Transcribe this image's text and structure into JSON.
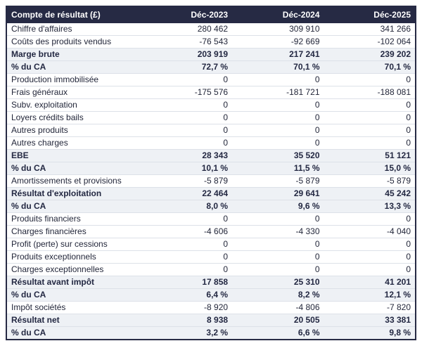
{
  "colors": {
    "header_bg": "#262a44",
    "header_text": "#ffffff",
    "highlight_row_bg": "#eef1f5",
    "text": "#23273a",
    "bold_text": "#232842",
    "row_border": "#dde1e8",
    "outer_border": "#262a44",
    "page_bg": "#ffffff"
  },
  "table": {
    "columns": [
      "Compte de résultat (£)",
      "Déc-2023",
      "Déc-2024",
      "Déc-2025"
    ],
    "rows": [
      {
        "label": "Chiffre d'affaires",
        "values": [
          "280 462",
          "309 910",
          "341 266"
        ],
        "highlight": false
      },
      {
        "label": "Coûts des produits vendus",
        "values": [
          "-76 543",
          "-92 669",
          "-102 064"
        ],
        "highlight": false
      },
      {
        "label": "Marge brute",
        "values": [
          "203 919",
          "217 241",
          "239 202"
        ],
        "highlight": true
      },
      {
        "label": "% du CA",
        "values": [
          "72,7 %",
          "70,1 %",
          "70,1 %"
        ],
        "highlight": true
      },
      {
        "label": "Production immobilisée",
        "values": [
          "0",
          "0",
          "0"
        ],
        "highlight": false
      },
      {
        "label": "Frais généraux",
        "values": [
          "-175 576",
          "-181 721",
          "-188 081"
        ],
        "highlight": false
      },
      {
        "label": "Subv. exploitation",
        "values": [
          "0",
          "0",
          "0"
        ],
        "highlight": false
      },
      {
        "label": "Loyers crédits bails",
        "values": [
          "0",
          "0",
          "0"
        ],
        "highlight": false
      },
      {
        "label": "Autres produits",
        "values": [
          "0",
          "0",
          "0"
        ],
        "highlight": false
      },
      {
        "label": "Autres charges",
        "values": [
          "0",
          "0",
          "0"
        ],
        "highlight": false
      },
      {
        "label": "EBE",
        "values": [
          "28 343",
          "35 520",
          "51 121"
        ],
        "highlight": true
      },
      {
        "label": "% du CA",
        "values": [
          "10,1 %",
          "11,5 %",
          "15,0 %"
        ],
        "highlight": true
      },
      {
        "label": "Amortissements et provisions",
        "values": [
          "-5 879",
          "-5 879",
          "-5 879"
        ],
        "highlight": false
      },
      {
        "label": "Résultat d'exploitation",
        "values": [
          "22 464",
          "29 641",
          "45 242"
        ],
        "highlight": true
      },
      {
        "label": "% du CA",
        "values": [
          "8,0 %",
          "9,6 %",
          "13,3 %"
        ],
        "highlight": true
      },
      {
        "label": "Produits financiers",
        "values": [
          "0",
          "0",
          "0"
        ],
        "highlight": false
      },
      {
        "label": "Charges financières",
        "values": [
          "-4 606",
          "-4 330",
          "-4 040"
        ],
        "highlight": false
      },
      {
        "label": "Profit (perte) sur cessions",
        "values": [
          "0",
          "0",
          "0"
        ],
        "highlight": false
      },
      {
        "label": "Produits exceptionnels",
        "values": [
          "0",
          "0",
          "0"
        ],
        "highlight": false
      },
      {
        "label": "Charges exceptionnelles",
        "values": [
          "0",
          "0",
          "0"
        ],
        "highlight": false
      },
      {
        "label": "Résultat avant impôt",
        "values": [
          "17 858",
          "25 310",
          "41 201"
        ],
        "highlight": true
      },
      {
        "label": "% du CA",
        "values": [
          "6,4 %",
          "8,2 %",
          "12,1 %"
        ],
        "highlight": true
      },
      {
        "label": "Impôt sociétés",
        "values": [
          "-8 920",
          "-4 806",
          "-7 820"
        ],
        "highlight": false
      },
      {
        "label": "Résultat net",
        "values": [
          "8 938",
          "20 505",
          "33 381"
        ],
        "highlight": true
      },
      {
        "label": "% du CA",
        "values": [
          "3,2 %",
          "6,6 %",
          "9,8 %"
        ],
        "highlight": true
      }
    ]
  }
}
